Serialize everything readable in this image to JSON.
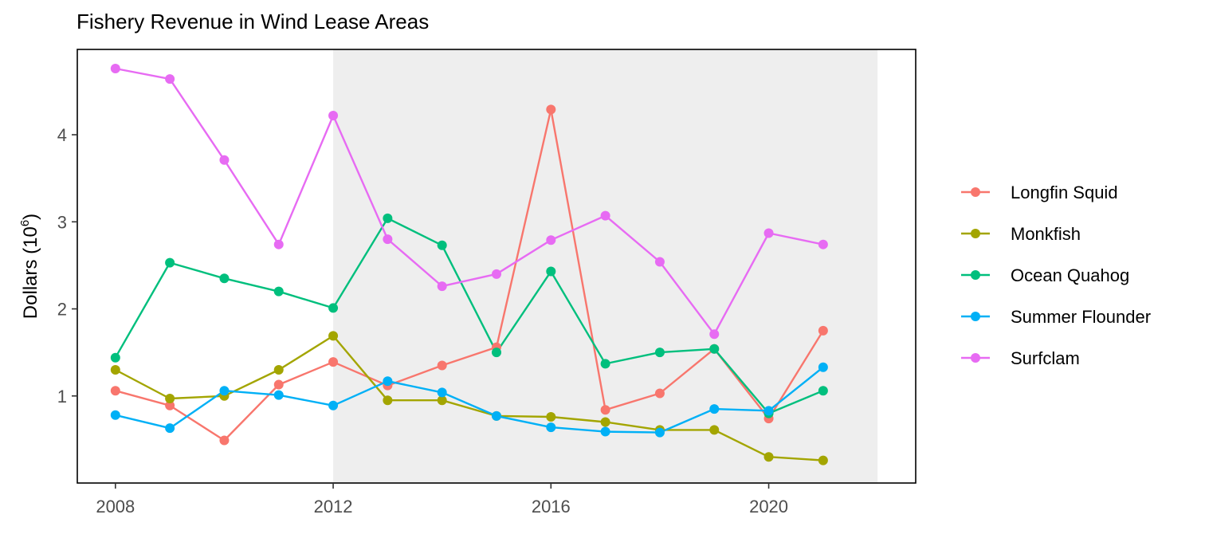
{
  "chart_data": {
    "type": "line",
    "title": "Fishery Revenue in Wind Lease Areas",
    "xlabel": "",
    "ylabel": "Dollars (10",
    "ylabel_sup": "6",
    "ylabel_close": ")",
    "xlim": [
      2007.3,
      2022.7
    ],
    "ylim": [
      0.0,
      4.98
    ],
    "x_ticks": [
      2008,
      2012,
      2016,
      2020
    ],
    "x_tick_labels": [
      "2008",
      "2012",
      "2016",
      "2020"
    ],
    "y_ticks": [
      1,
      2,
      3,
      4
    ],
    "y_tick_labels": [
      "1",
      "2",
      "3",
      "4"
    ],
    "shaded_region": {
      "x_start": 2012,
      "x_end": 2022,
      "color": "#eeeeee"
    },
    "grid": false,
    "legend_position": "right",
    "x": [
      2008,
      2009,
      2010,
      2011,
      2012,
      2013,
      2014,
      2015,
      2016,
      2017,
      2018,
      2019,
      2020,
      2021
    ],
    "series": [
      {
        "name": "Longfin Squid",
        "color": "#F8766D",
        "values": [
          1.06,
          0.89,
          0.49,
          1.13,
          1.39,
          1.12,
          1.35,
          1.56,
          4.29,
          0.84,
          1.03,
          1.54,
          0.74,
          1.75
        ]
      },
      {
        "name": "Monkfish",
        "color": "#A3A500",
        "values": [
          1.3,
          0.97,
          1.0,
          1.3,
          1.69,
          0.95,
          0.95,
          0.77,
          0.76,
          0.7,
          0.61,
          0.61,
          0.3,
          0.26
        ]
      },
      {
        "name": "Ocean Quahog",
        "color": "#00BF7D",
        "values": [
          1.44,
          2.53,
          2.35,
          2.2,
          2.01,
          3.04,
          2.73,
          1.5,
          2.43,
          1.37,
          1.5,
          1.54,
          0.8,
          1.06
        ]
      },
      {
        "name": "Summer Flounder",
        "color": "#00B0F6",
        "values": [
          0.78,
          0.63,
          1.06,
          1.01,
          0.89,
          1.17,
          1.04,
          0.77,
          0.64,
          0.59,
          0.58,
          0.85,
          0.83,
          1.33
        ]
      },
      {
        "name": "Surfclam",
        "color": "#E76BF3",
        "values": [
          4.76,
          4.64,
          3.71,
          2.74,
          4.22,
          2.8,
          2.26,
          2.4,
          2.79,
          3.07,
          2.54,
          1.71,
          2.87,
          2.74
        ]
      }
    ]
  }
}
